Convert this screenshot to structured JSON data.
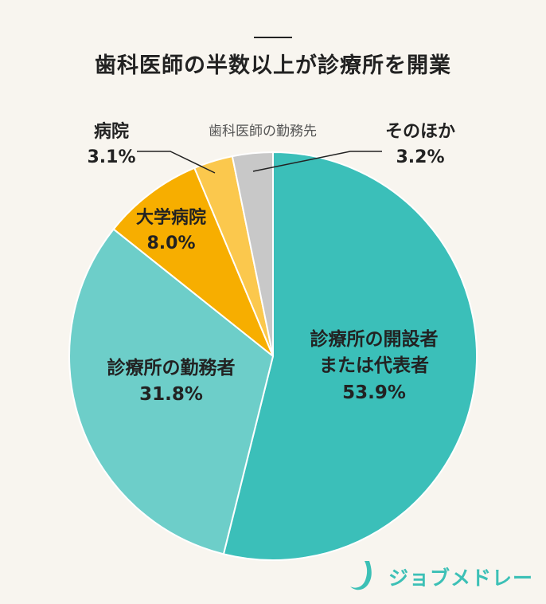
{
  "title": "歯科医師の半数以上が診療所を開業",
  "chart_data": {
    "type": "pie",
    "title": "歯科医師の勤務先",
    "slices": [
      {
        "name_lines": [
          "診療所の開設者",
          "または代表者"
        ],
        "pct_label": "53.9%",
        "value": 53.9,
        "color": "#3bbfb9"
      },
      {
        "name_lines": [
          "診療所の勤務者"
        ],
        "pct_label": "31.8%",
        "value": 31.8,
        "color": "#6dcec9"
      },
      {
        "name_lines": [
          "大学病院"
        ],
        "pct_label": "8.0%",
        "value": 8.0,
        "color": "#f7ae00"
      },
      {
        "name_lines": [
          "病院"
        ],
        "pct_label": "3.1%",
        "value": 3.1,
        "color": "#fbc84d"
      },
      {
        "name_lines": [
          "そのほか"
        ],
        "pct_label": "3.2%",
        "value": 3.2,
        "color": "#c8c8c8"
      }
    ]
  },
  "logo": {
    "text": "ジョブメドレー",
    "icon": "j-logo-icon",
    "color": "#3cc0b6"
  }
}
